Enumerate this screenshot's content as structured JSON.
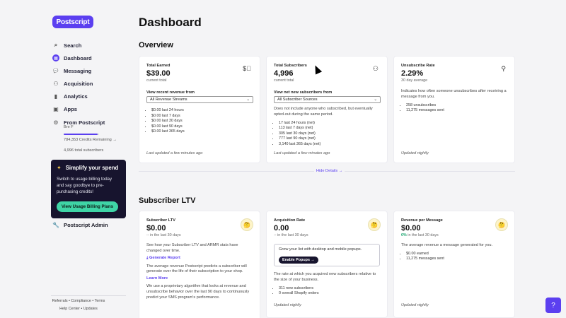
{
  "sidebar": {
    "logo": "Postscript",
    "items": [
      {
        "label": "Search",
        "icon": "search-icon",
        "glyph": "⌕"
      },
      {
        "label": "Dashboard",
        "icon": "dashboard-icon",
        "glyph": "▦"
      },
      {
        "label": "Messaging",
        "icon": "chat-icon",
        "glyph": "💬"
      },
      {
        "label": "Acquisition",
        "icon": "user-add-icon",
        "glyph": "⚇"
      },
      {
        "label": "Analytics",
        "icon": "bar-chart-icon",
        "glyph": "▮"
      },
      {
        "label": "Apps",
        "icon": "apps-icon",
        "glyph": "▣"
      },
      {
        "label": "From Postscript",
        "icon": "gear-icon",
        "glyph": "⚙"
      }
    ],
    "account_name": "Bre F",
    "credits": "784,353 Credits Remaining →",
    "credits_fraction": 0.95,
    "total_subscribers": "4,996 total subscribers",
    "promo": {
      "title": "Simplify your spend",
      "body": "Switch to usage billing today and say goodbye to pre-purchasing credits!",
      "button": "View Usage Billing Plans"
    },
    "admin": "Postscript Admin",
    "footer_line1": "Referrals • Compliance • Terms",
    "footer_line2": "Help Center • Updates"
  },
  "main": {
    "title": "Dashboard",
    "overview": {
      "title": "Overview",
      "hide_details": "Hide Details →",
      "cards": [
        {
          "title": "Total Earned",
          "value": "$39.00",
          "sub": "current total",
          "label": "View recent revenue from",
          "select": "All Revenue Streams",
          "stats": [
            "$0.00 last 24 hours",
            "$0.00 last 7 days",
            "$0.00 last 30 days",
            "$0.00 last 90 days",
            "$0.00 last 365 days"
          ],
          "updated": "Last updated a few minutes ago"
        },
        {
          "title": "Total Subscribers",
          "value": "4,996",
          "sub": "current total",
          "label": "View net new subscribers from",
          "select": "All Subscriber Sources",
          "desc": "Does not include anyone who subscribed, but eventually opted-out during the same period.",
          "stats": [
            "17 last 24 hours (net)",
            "113 last 7 days (net)",
            "305 last 30 days (net)",
            "777 last 90 days (net)",
            "3,140 last 365 days (net)"
          ],
          "updated": "Last updated a few minutes ago"
        },
        {
          "title": "Unsubscribe Rate",
          "value": "2.29%",
          "sub": "30 day average",
          "desc": "Indicates how often someone unsubscribes after receiving a message from you.",
          "stats": [
            "258 unsubscribes",
            "11,275 messages sent"
          ],
          "updated": "Updated nightly"
        }
      ]
    },
    "ltv": {
      "title": "Subscriber LTV",
      "cards": [
        {
          "title": "Subscriber LTV",
          "value": "$0.00",
          "sub": "-- in the last 30 days",
          "desc1": "See how your Subscriber LTV and ARMR stats have changed over time.",
          "report": "Generate Report",
          "desc2": "The average revenue Postscript predicts a subscriber will generate over the life of their subscription to your shop.",
          "learn": "Learn More",
          "desc3": "We use a proprietary algorithm that looks at revenue and unsubscribe behavior over the last 90 days to continuously predict your SMS program's performance."
        },
        {
          "title": "Acquisition Rate",
          "value": "0.00",
          "sub": "in the last 30 days",
          "popup_text": "Grow your list with desktop and mobile popups.",
          "popup_btn": "Enable Popups →",
          "desc": "The rate at which you acquired new subscribers relative to the size of your business.",
          "stats": [
            "311 new subscribers",
            "0 overall Shopify orders"
          ],
          "updated": "Updated nightly"
        },
        {
          "title": "Revenue per Message",
          "value": "$0.00",
          "sub_pct": "0%",
          "sub": " in the last 30 days",
          "desc": "The average revenue a message generated for you.",
          "stats": [
            "$0.00 earned",
            "11,275 messages sent"
          ],
          "updated": "Updated nightly"
        }
      ]
    }
  },
  "colors": {
    "accent": "#5b3ff0",
    "promo_bg": "#17142e",
    "promo_btn": "#3fd4a6",
    "success": "#1aa56f"
  }
}
